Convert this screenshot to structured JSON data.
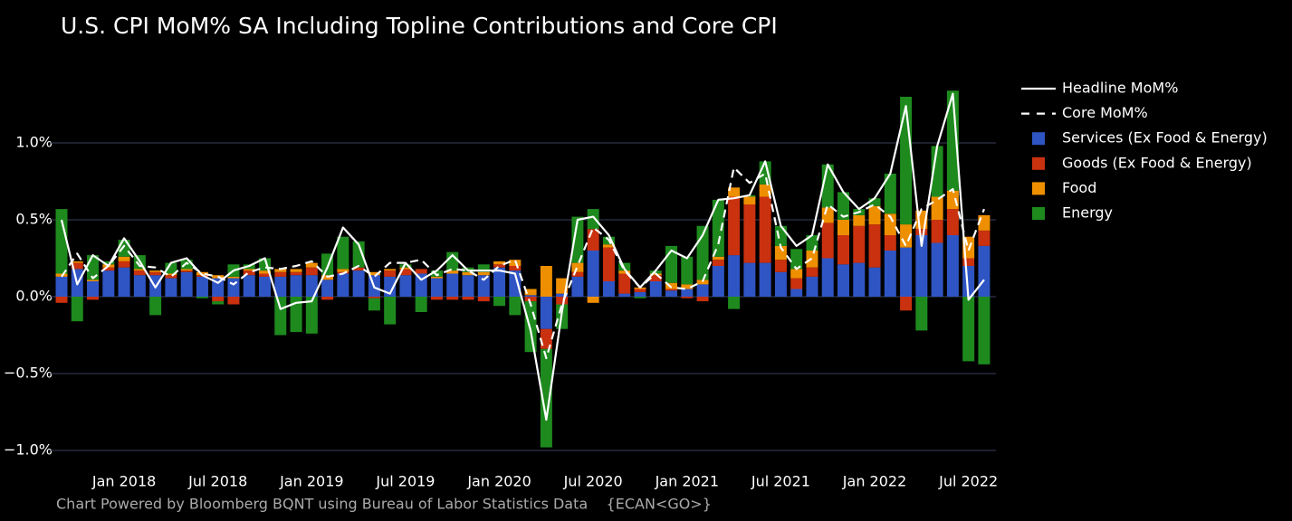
{
  "chart_data": {
    "type": "bar",
    "title": "U.S. CPI MoM% SA Including Topline Contributions and Core CPI",
    "footnote": "Chart Powered by Bloomberg BQNT using Bureau of Labor Statistics Data    {ECAN<GO>}",
    "x": [
      "2017-09",
      "2017-10",
      "2017-11",
      "2017-12",
      "2018-01",
      "2018-02",
      "2018-03",
      "2018-04",
      "2018-05",
      "2018-06",
      "2018-07",
      "2018-08",
      "2018-09",
      "2018-10",
      "2018-11",
      "2018-12",
      "2019-01",
      "2019-02",
      "2019-03",
      "2019-04",
      "2019-05",
      "2019-06",
      "2019-07",
      "2019-08",
      "2019-09",
      "2019-10",
      "2019-11",
      "2019-12",
      "2020-01",
      "2020-02",
      "2020-03",
      "2020-04",
      "2020-05",
      "2020-06",
      "2020-07",
      "2020-08",
      "2020-09",
      "2020-10",
      "2020-11",
      "2020-12",
      "2021-01",
      "2021-02",
      "2021-03",
      "2021-04",
      "2021-05",
      "2021-06",
      "2021-07",
      "2021-08",
      "2021-09",
      "2021-10",
      "2021-11",
      "2021-12",
      "2022-01",
      "2022-02",
      "2022-03",
      "2022-04",
      "2022-05",
      "2022-06",
      "2022-07",
      "2022-08"
    ],
    "xticks": [
      {
        "value": "2018-01",
        "label": "Jan 2018"
      },
      {
        "value": "2018-07",
        "label": "Jul 2018"
      },
      {
        "value": "2019-01",
        "label": "Jan 2019"
      },
      {
        "value": "2019-07",
        "label": "Jul 2019"
      },
      {
        "value": "2020-01",
        "label": "Jan 2020"
      },
      {
        "value": "2020-07",
        "label": "Jul 2020"
      },
      {
        "value": "2021-01",
        "label": "Jan 2021"
      },
      {
        "value": "2021-07",
        "label": "Jul 2021"
      },
      {
        "value": "2022-01",
        "label": "Jan 2022"
      },
      {
        "value": "2022-07",
        "label": "Jul 2022"
      }
    ],
    "ylim": [
      -1.1,
      1.45
    ],
    "yticks": [
      {
        "value": -1.0,
        "label": "−1.0%"
      },
      {
        "value": -0.5,
        "label": "−0.5%"
      },
      {
        "value": 0,
        "label": "0.0%"
      },
      {
        "value": 0.5,
        "label": "0.5%"
      },
      {
        "value": 1.0,
        "label": "1.0%"
      }
    ],
    "grid": true,
    "legend": "right",
    "series": [
      {
        "name": "Headline MoM%",
        "type": "line",
        "dash": false,
        "color": "#ffffff",
        "values": [
          0.5,
          0.08,
          0.27,
          0.2,
          0.38,
          0.23,
          0.06,
          0.22,
          0.25,
          0.14,
          0.09,
          0.17,
          0.2,
          0.25,
          -0.08,
          -0.04,
          -0.03,
          0.19,
          0.45,
          0.34,
          0.06,
          0.02,
          0.22,
          0.11,
          0.17,
          0.27,
          0.17,
          0.17,
          0.17,
          0.15,
          -0.22,
          -0.8,
          -0.1,
          0.5,
          0.52,
          0.4,
          0.18,
          0.06,
          0.17,
          0.3,
          0.25,
          0.4,
          0.63,
          0.64,
          0.66,
          0.88,
          0.46,
          0.33,
          0.4,
          0.86,
          0.68,
          0.57,
          0.64,
          0.8,
          1.24,
          0.33,
          0.98,
          1.32,
          -0.02,
          0.11
        ]
      },
      {
        "name": "Core MoM%",
        "type": "line",
        "dash": true,
        "color": "#ffffff",
        "values": [
          0.13,
          0.28,
          0.12,
          0.2,
          0.33,
          0.2,
          0.19,
          0.13,
          0.22,
          0.15,
          0.13,
          0.08,
          0.16,
          0.19,
          0.18,
          0.2,
          0.23,
          0.13,
          0.15,
          0.2,
          0.13,
          0.22,
          0.22,
          0.24,
          0.14,
          0.18,
          0.17,
          0.11,
          0.2,
          0.24,
          -0.05,
          -0.4,
          -0.05,
          0.2,
          0.45,
          0.37,
          0.17,
          0.06,
          0.15,
          0.06,
          0.05,
          0.1,
          0.34,
          0.84,
          0.74,
          0.8,
          0.32,
          0.18,
          0.25,
          0.6,
          0.52,
          0.55,
          0.6,
          0.52,
          0.33,
          0.57,
          0.63,
          0.7,
          0.3,
          0.57
        ]
      },
      {
        "name": "Services (Ex Food & Energy)",
        "type": "bar",
        "color": "#2f55c4",
        "values": [
          0.13,
          0.18,
          0.1,
          0.17,
          0.19,
          0.14,
          0.14,
          0.12,
          0.16,
          0.13,
          0.12,
          0.12,
          0.14,
          0.13,
          0.13,
          0.14,
          0.14,
          0.11,
          0.15,
          0.17,
          0.14,
          0.13,
          0.14,
          0.15,
          0.12,
          0.15,
          0.14,
          0.14,
          0.19,
          0.17,
          0.01,
          -0.21,
          0.02,
          0.13,
          0.3,
          0.1,
          0.02,
          0.03,
          0.1,
          0.04,
          0.05,
          0.08,
          0.2,
          0.27,
          0.22,
          0.22,
          0.16,
          0.05,
          0.13,
          0.25,
          0.21,
          0.22,
          0.19,
          0.3,
          0.32,
          0.4,
          0.35,
          0.4,
          0.2,
          0.33
        ]
      },
      {
        "name": "Goods (Ex Food & Energy)",
        "type": "bar",
        "color": "#c9310f",
        "values": [
          -0.04,
          0.04,
          -0.02,
          0.02,
          0.04,
          0.03,
          0.02,
          0.02,
          0.01,
          0.01,
          -0.03,
          -0.05,
          0.03,
          0.02,
          0.03,
          0.02,
          0.05,
          -0.02,
          0.01,
          0.02,
          -0.01,
          0.04,
          0.04,
          0.03,
          -0.02,
          -0.02,
          -0.02,
          -0.03,
          0.02,
          0.03,
          -0.03,
          -0.13,
          -0.05,
          0.03,
          0.14,
          0.22,
          0.13,
          0.02,
          0.04,
          0.01,
          -0.01,
          -0.03,
          0.04,
          0.38,
          0.38,
          0.43,
          0.08,
          0.07,
          0.06,
          0.23,
          0.19,
          0.24,
          0.28,
          0.1,
          -0.09,
          0.04,
          0.15,
          0.17,
          0.05,
          0.1
        ]
      },
      {
        "name": "Food",
        "type": "bar",
        "color": "#ee8f00",
        "values": [
          0.02,
          0.01,
          0.01,
          0.02,
          0.03,
          0.01,
          0.01,
          0.01,
          0.01,
          0.02,
          0.02,
          0.01,
          0.01,
          0.02,
          0.02,
          0.02,
          0.03,
          0.03,
          0.02,
          0.0,
          0.02,
          0.01,
          0.01,
          0.0,
          0.01,
          0.02,
          0.02,
          0.02,
          0.02,
          0.04,
          0.04,
          0.2,
          0.1,
          0.06,
          -0.04,
          0.02,
          0.02,
          0.01,
          0.01,
          0.04,
          0.03,
          0.03,
          0.02,
          0.06,
          0.05,
          0.08,
          0.09,
          0.06,
          0.11,
          0.1,
          0.1,
          0.07,
          0.12,
          0.14,
          0.15,
          0.12,
          0.15,
          0.12,
          0.14,
          0.1
        ]
      },
      {
        "name": "Energy",
        "type": "bar",
        "color": "#1e8a1e",
        "values": [
          0.42,
          -0.16,
          0.16,
          0.02,
          0.11,
          0.09,
          -0.12,
          0.07,
          0.06,
          -0.01,
          -0.02,
          0.08,
          0.03,
          0.08,
          -0.25,
          -0.23,
          -0.24,
          0.14,
          0.21,
          0.17,
          -0.08,
          -0.18,
          0.02,
          -0.1,
          0.04,
          0.12,
          0.03,
          0.05,
          -0.06,
          -0.12,
          -0.33,
          -0.64,
          -0.16,
          0.3,
          0.13,
          0.05,
          0.05,
          -0.01,
          0.02,
          0.24,
          0.18,
          0.35,
          0.37,
          -0.08,
          0.01,
          0.15,
          0.13,
          0.13,
          0.1,
          0.28,
          0.18,
          0.04,
          0.05,
          0.26,
          0.83,
          -0.22,
          0.33,
          0.65,
          -0.42,
          -0.44
        ]
      }
    ]
  }
}
